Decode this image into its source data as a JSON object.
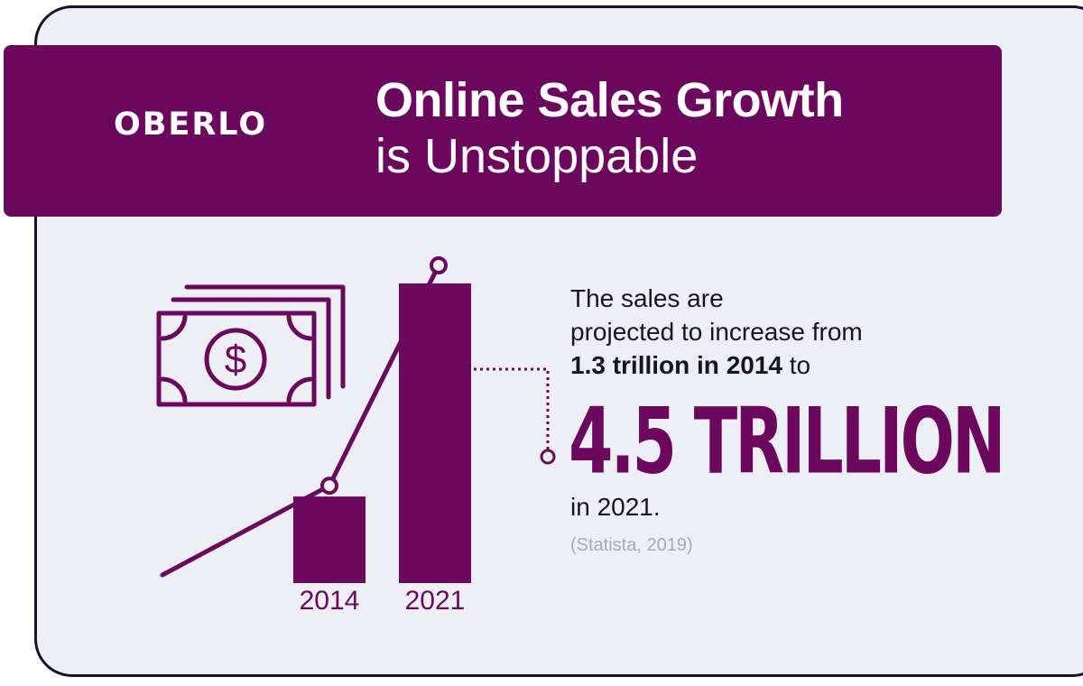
{
  "header": {
    "brand": "OBERLO",
    "title_line1": "Online Sales Growth",
    "title_line2": "is Unstoppable"
  },
  "text": {
    "line1": "The sales are",
    "line2": "projected to increase from",
    "line3_bold": "1.3 trillion in 2014",
    "line3_rest": " to",
    "big_value": "4.5 TRILLION",
    "after": "in 2021.",
    "source": "(Statista, 2019)"
  },
  "icons": {
    "money": "money-stack-icon",
    "dollar": "dollar-icon"
  },
  "colors": {
    "accent": "#6b075d",
    "text": "#17132a",
    "background": "#eeeef5",
    "source_text": "#a9a8b8"
  },
  "chart_data": {
    "type": "bar",
    "categories": [
      "2014",
      "2021"
    ],
    "values": [
      1.3,
      4.5
    ],
    "ylim": [
      0,
      4.5
    ],
    "title": "",
    "xlabel": "",
    "ylabel": "",
    "trend_line": true
  }
}
